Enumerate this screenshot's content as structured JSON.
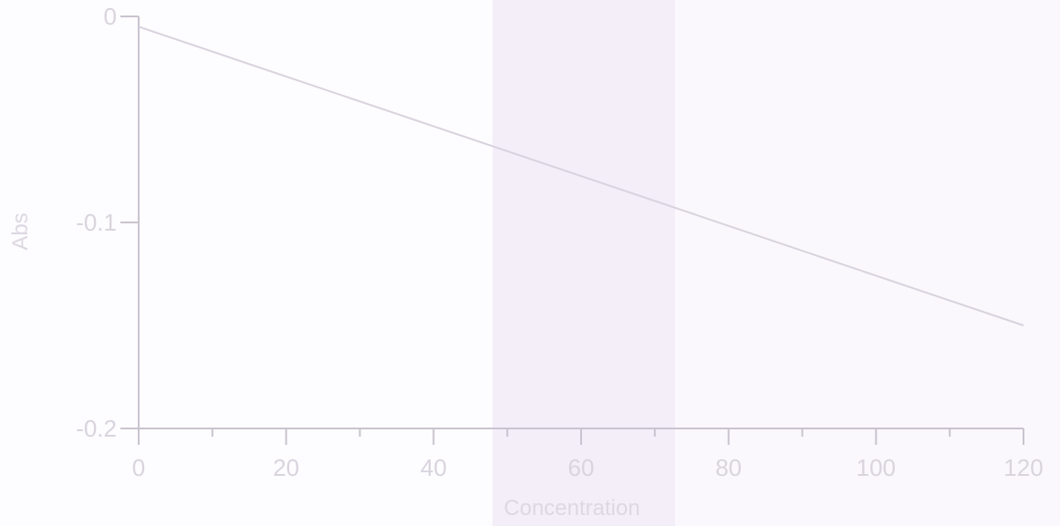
{
  "chart_data": {
    "type": "line",
    "xlabel": "Concentration",
    "ylabel": "Abs",
    "xlim": [
      0,
      120
    ],
    "ylim": [
      -0.2,
      0
    ],
    "x_ticks": [
      0,
      20,
      40,
      60,
      80,
      100,
      120
    ],
    "x_tick_labels": [
      "0",
      "20",
      "40",
      "60",
      "80",
      "100",
      "120"
    ],
    "y_ticks": [
      0,
      -0.1,
      -0.2
    ],
    "y_tick_labels": [
      "0",
      "-0.1",
      "-0.2"
    ],
    "grid": false,
    "series": [
      {
        "x": [
          0,
          120
        ],
        "y": [
          -0.005,
          -0.15
        ]
      }
    ]
  },
  "colors": {
    "axis": "#c9c4cf",
    "line": "#d8d3de",
    "background": "#fcfafd"
  }
}
